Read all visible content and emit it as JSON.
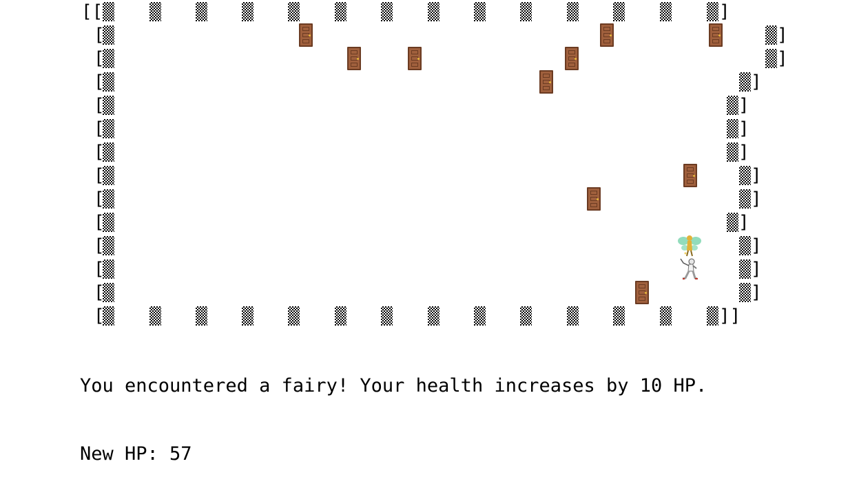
{
  "game": {
    "bracket_open": "[",
    "bracket_close": "]",
    "wall_icon": "checkered-wall-block",
    "door_icon": "wooden-door",
    "fairy_icon": "fairy",
    "player_icon": "fencer",
    "door_color": "#a0603d",
    "door_border_color": "#6b3b22",
    "door_knob_color": "#e8b83c",
    "fairy_wing_color": "#7fd6b0",
    "fairy_body_color": "#e2b23a"
  },
  "messages": {
    "line1": "You encountered a fairy! Your health increases by 10 HP.",
    "line2": "New HP: 57"
  }
}
